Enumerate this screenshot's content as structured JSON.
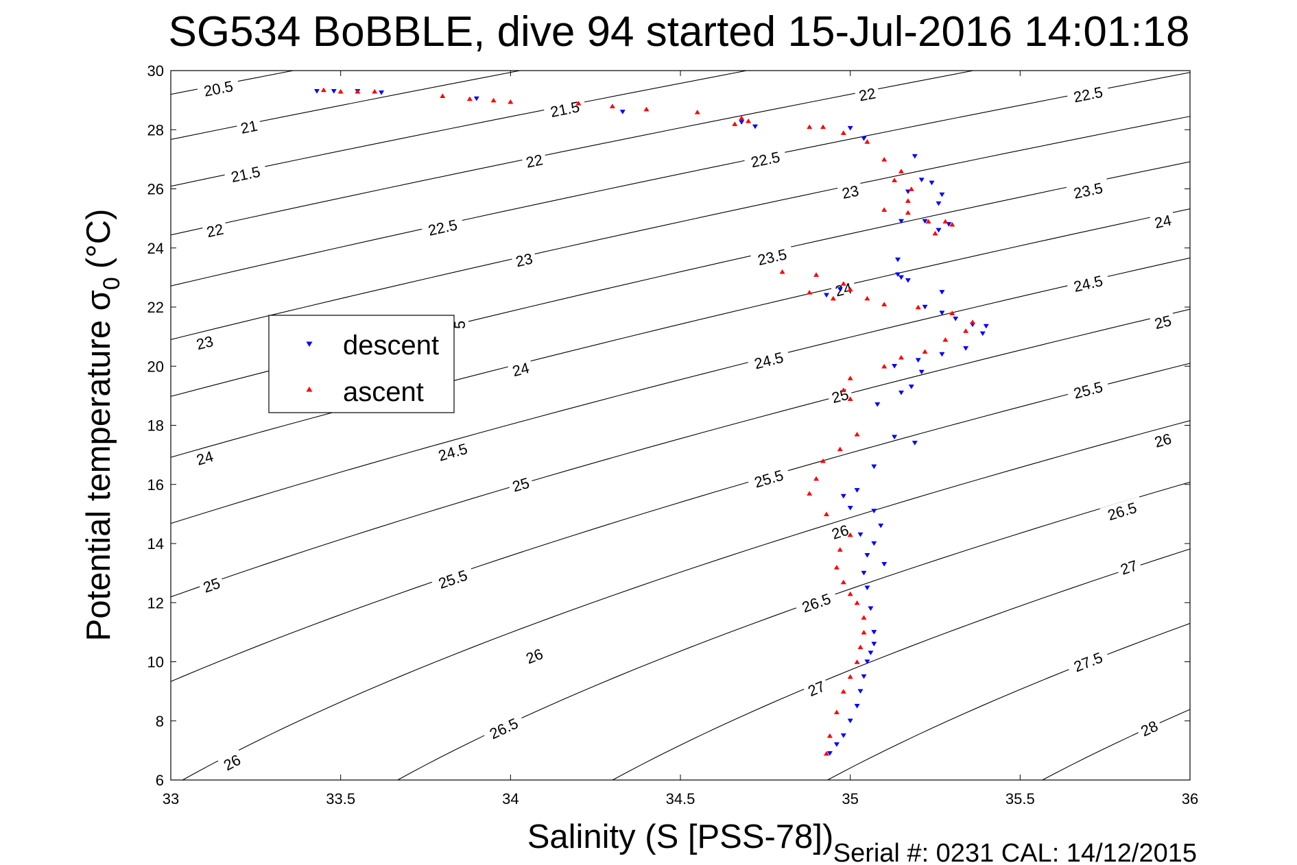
{
  "chart_data": {
    "type": "scatter",
    "title": "SG534 BoBBLE, dive 94 started 15-Jul-2016 14:01:18",
    "xlabel": "Salinity (S [PSS-78])",
    "ylabel_main": "Potential temperature σ",
    "ylabel_sub": "0",
    "ylabel_unit": "(°C)",
    "xlim": [
      33,
      36
    ],
    "ylim": [
      6,
      30
    ],
    "xticks": [
      33,
      33.5,
      34,
      34.5,
      35,
      35.5,
      36
    ],
    "xtick_labels": [
      "33",
      "33.5",
      "34",
      "34.5",
      "35",
      "35.5",
      "36"
    ],
    "yticks": [
      6,
      8,
      10,
      12,
      14,
      16,
      18,
      20,
      22,
      24,
      26,
      28,
      30
    ],
    "ytick_labels": [
      "6",
      "8",
      "10",
      "12",
      "14",
      "16",
      "18",
      "20",
      "22",
      "24",
      "26",
      "28",
      "30"
    ],
    "grid": false,
    "footer": "Serial #: 0231  CAL: 14/12/2015",
    "legend": {
      "placement": "left-middle",
      "entries": [
        {
          "label": "descent",
          "color": "#0000ff",
          "marker": "triangle-down"
        },
        {
          "label": "ascent",
          "color": "#ff0000",
          "marker": "triangle-up"
        }
      ]
    },
    "contours": {
      "color": "#000000",
      "levels": [
        20.5,
        21,
        21.5,
        22,
        22.5,
        23,
        23.5,
        24,
        24.5,
        25,
        25.5,
        26,
        26.5,
        27,
        27.5,
        28
      ],
      "labels": [
        {
          "text": "20.5",
          "s": 33.14,
          "t": 29.4
        },
        {
          "text": "21",
          "s": 33.23,
          "t": 28.1
        },
        {
          "text": "21.5",
          "s": 33.22,
          "t": 26.5
        },
        {
          "text": "22",
          "s": 33.13,
          "t": 24.6
        },
        {
          "text": "23",
          "s": 33.1,
          "t": 20.8
        },
        {
          "text": "24",
          "s": 33.1,
          "t": 16.9
        },
        {
          "text": "25",
          "s": 33.12,
          "t": 12.6
        },
        {
          "text": "26",
          "s": 33.18,
          "t": 6.6
        },
        {
          "text": "21.5",
          "s": 34.16,
          "t": 28.7
        },
        {
          "text": "22",
          "s": 34.07,
          "t": 26.95
        },
        {
          "text": "22.5",
          "s": 33.8,
          "t": 24.7
        },
        {
          "text": "23",
          "s": 34.04,
          "t": 23.6
        },
        {
          "text": "5",
          "s": 33.85,
          "t": 21.4
        },
        {
          "text": "24",
          "s": 34.03,
          "t": 19.9
        },
        {
          "text": "24.5",
          "s": 33.83,
          "t": 17.1
        },
        {
          "text": "25",
          "s": 34.03,
          "t": 16.0
        },
        {
          "text": "25.5",
          "s": 33.83,
          "t": 12.8
        },
        {
          "text": "26",
          "s": 34.07,
          "t": 10.2
        },
        {
          "text": "26.5",
          "s": 33.98,
          "t": 7.75
        },
        {
          "text": "22",
          "s": 35.05,
          "t": 29.2
        },
        {
          "text": "22.5",
          "s": 34.75,
          "t": 27.0
        },
        {
          "text": "23",
          "s": 35.0,
          "t": 25.9
        },
        {
          "text": "23.5",
          "s": 34.77,
          "t": 23.7
        },
        {
          "text": "24",
          "s": 34.98,
          "t": 22.6
        },
        {
          "text": "24.5",
          "s": 34.76,
          "t": 20.2
        },
        {
          "text": "25",
          "s": 34.97,
          "t": 19.0
        },
        {
          "text": "25.5",
          "s": 34.76,
          "t": 16.2
        },
        {
          "text": "26",
          "s": 34.97,
          "t": 14.4
        },
        {
          "text": "26.5",
          "s": 34.9,
          "t": 12.0
        },
        {
          "text": "27",
          "s": 34.9,
          "t": 9.1
        },
        {
          "text": "22.5",
          "s": 35.7,
          "t": 29.2
        },
        {
          "text": "23.5",
          "s": 35.7,
          "t": 25.95
        },
        {
          "text": "24",
          "s": 35.92,
          "t": 24.9
        },
        {
          "text": "24.5",
          "s": 35.7,
          "t": 22.8
        },
        {
          "text": "25",
          "s": 35.92,
          "t": 21.5
        },
        {
          "text": "25.5",
          "s": 35.7,
          "t": 19.2
        },
        {
          "text": "26",
          "s": 35.92,
          "t": 17.5
        },
        {
          "text": "26.5",
          "s": 35.8,
          "t": 15.1
        },
        {
          "text": "27",
          "s": 35.82,
          "t": 13.2
        },
        {
          "text": "27.5",
          "s": 35.7,
          "t": 10.0
        },
        {
          "text": "28",
          "s": 35.88,
          "t": 7.75
        }
      ]
    },
    "series": [
      {
        "name": "descent",
        "color": "#0000ff",
        "marker": "triangle-down",
        "x": [
          33.43,
          33.48,
          33.55,
          33.62,
          33.9,
          34.33,
          34.68,
          34.72,
          35.0,
          35.04,
          35.19,
          35.21,
          35.24,
          35.17,
          35.27,
          35.26,
          35.29,
          35.22,
          35.15,
          35.26,
          35.14,
          35.15,
          35.14,
          35.17,
          35.27,
          34.97,
          34.93,
          35.22,
          35.27,
          35.31,
          35.36,
          35.4,
          35.39,
          35.34,
          35.27,
          35.2,
          35.13,
          35.21,
          35.18,
          35.15,
          35.08,
          35.13,
          35.19,
          35.07,
          35.02,
          34.98,
          35.0,
          35.07,
          35.09,
          35.03,
          35.07,
          35.1,
          35.05,
          35.04,
          35.05,
          35.06,
          35.07,
          35.07,
          35.06,
          35.05,
          35.04,
          35.03,
          35.02,
          35.0,
          34.98,
          34.96,
          34.94
        ],
        "y": [
          29.3,
          29.3,
          29.3,
          29.25,
          29.05,
          28.6,
          28.25,
          28.1,
          28.05,
          27.7,
          27.1,
          26.3,
          26.2,
          25.9,
          25.8,
          25.5,
          24.8,
          24.9,
          24.9,
          24.6,
          23.6,
          23.0,
          23.1,
          22.9,
          22.5,
          22.6,
          22.4,
          22.0,
          21.8,
          21.6,
          21.4,
          21.35,
          21.1,
          20.6,
          20.4,
          20.2,
          20.0,
          19.8,
          19.3,
          19.1,
          18.7,
          17.6,
          17.4,
          16.6,
          15.8,
          15.6,
          15.2,
          15.1,
          14.6,
          14.3,
          14.0,
          13.3,
          13.6,
          13.0,
          12.5,
          11.8,
          11.0,
          10.6,
          10.3,
          10.0,
          9.5,
          9.0,
          8.5,
          8.0,
          7.5,
          7.2,
          6.9
        ]
      },
      {
        "name": "ascent",
        "color": "#ff0000",
        "marker": "triangle-up",
        "x": [
          33.45,
          33.5,
          33.55,
          33.6,
          33.8,
          33.88,
          33.95,
          34.0,
          34.2,
          34.3,
          34.4,
          34.55,
          34.68,
          34.7,
          34.66,
          34.88,
          34.92,
          34.98,
          35.05,
          35.1,
          35.15,
          35.13,
          35.18,
          35.17,
          35.1,
          35.17,
          35.23,
          35.3,
          35.28,
          35.25,
          34.8,
          34.9,
          34.98,
          35.0,
          34.95,
          34.88,
          35.05,
          35.1,
          35.2,
          35.3,
          35.36,
          35.34,
          35.28,
          35.22,
          35.15,
          35.1,
          35.0,
          34.98,
          35.0,
          35.02,
          34.97,
          34.92,
          34.9,
          34.88,
          34.93,
          35.0,
          34.97,
          34.96,
          34.98,
          35.0,
          35.02,
          35.04,
          35.04,
          35.03,
          35.02,
          35.0,
          34.98,
          34.96,
          34.94,
          34.93
        ],
        "y": [
          29.35,
          29.3,
          29.3,
          29.3,
          29.15,
          29.05,
          29.0,
          28.95,
          28.9,
          28.8,
          28.7,
          28.6,
          28.4,
          28.3,
          28.2,
          28.1,
          28.1,
          27.9,
          27.6,
          27.0,
          26.6,
          26.3,
          26.0,
          25.6,
          25.3,
          25.2,
          24.9,
          24.8,
          24.9,
          24.5,
          23.2,
          23.1,
          22.8,
          22.6,
          22.3,
          22.5,
          22.3,
          22.1,
          22.0,
          21.8,
          21.5,
          21.2,
          20.9,
          20.5,
          20.3,
          20.0,
          19.6,
          19.2,
          18.9,
          17.7,
          17.2,
          16.8,
          16.2,
          15.7,
          15.0,
          14.3,
          13.8,
          13.2,
          12.7,
          12.3,
          12.0,
          11.5,
          11.0,
          10.5,
          10.0,
          9.5,
          9.0,
          8.3,
          7.5,
          6.9
        ]
      }
    ]
  }
}
